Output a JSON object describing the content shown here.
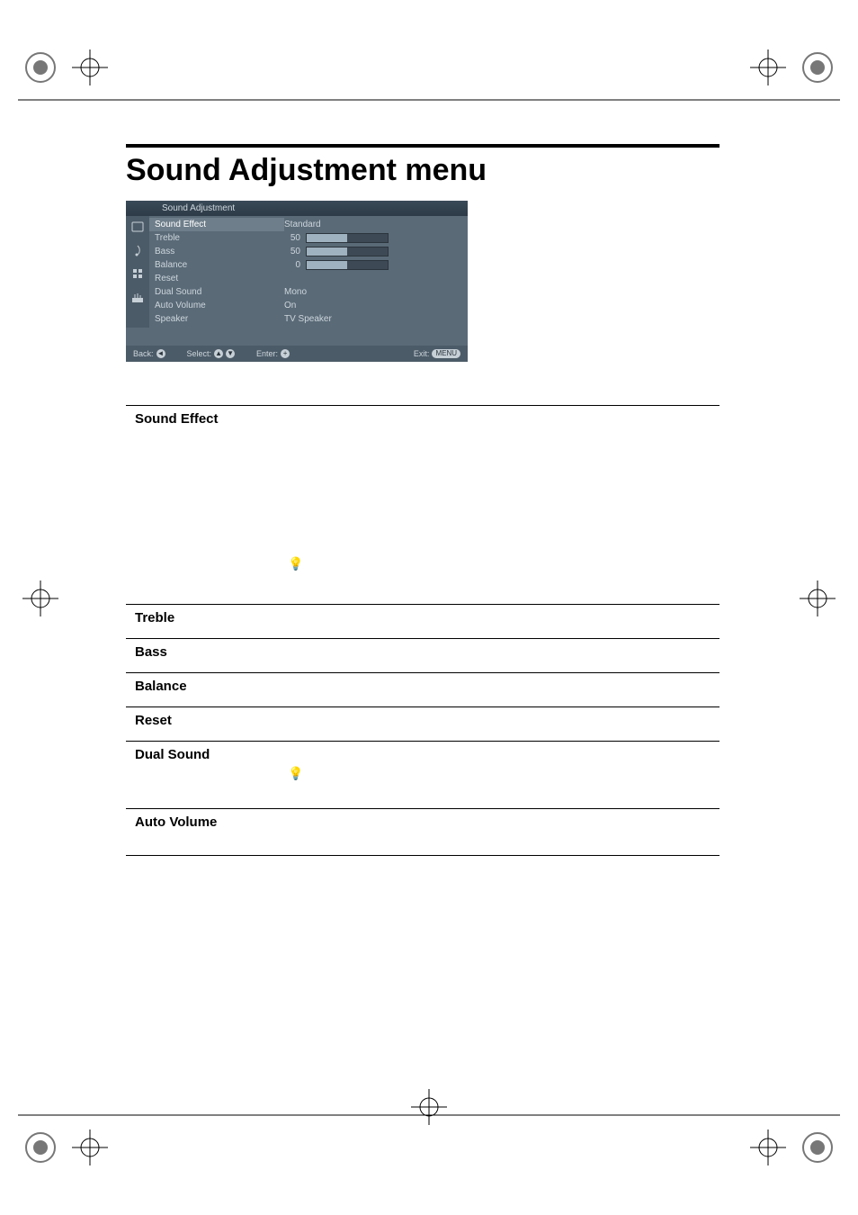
{
  "page": {
    "title": "Sound Adjustment menu"
  },
  "osd": {
    "header": "Sound Adjustment",
    "icon_names": [
      "picture-icon",
      "sound-icon",
      "features-icon",
      "setup-icon"
    ],
    "items": [
      {
        "label": "Sound Effect",
        "value_type": "text",
        "value": "Standard",
        "selected": true
      },
      {
        "label": "Treble",
        "value_type": "slider",
        "value": 50,
        "min": 0,
        "max": 100
      },
      {
        "label": "Bass",
        "value_type": "slider",
        "value": 50,
        "min": 0,
        "max": 100
      },
      {
        "label": "Balance",
        "value_type": "slider",
        "value": 0,
        "min": -50,
        "max": 50
      },
      {
        "label": "Reset",
        "value_type": "none"
      },
      {
        "label": "Dual Sound",
        "value_type": "text",
        "value": "Mono"
      },
      {
        "label": "Auto Volume",
        "value_type": "text",
        "value": "On"
      },
      {
        "label": "Speaker",
        "value_type": "text",
        "value": "TV Speaker"
      }
    ],
    "footer": {
      "back": "Back:",
      "select": "Select:",
      "enter": "Enter:",
      "exit": "Exit:",
      "exit_key": "MENU"
    },
    "colors": {
      "panel_bg": "#5a6a77",
      "sidebar_bg": "#4c5b68",
      "header_bg": "#2d3a47",
      "selected_bg": "#6e7e8a",
      "text": "#cdd6dd",
      "slider_track": "#3d4a55",
      "slider_fill": "#9fb2bf"
    }
  },
  "sections": [
    {
      "title": "Sound Effect",
      "hint_icon": true,
      "gap": "large"
    },
    {
      "title": "Treble"
    },
    {
      "title": "Bass"
    },
    {
      "title": "Balance"
    },
    {
      "title": "Reset"
    },
    {
      "title": "Dual Sound",
      "hint_icon": true,
      "gap": "small"
    },
    {
      "title": "Auto Volume"
    }
  ],
  "hint_glyph": "💡"
}
